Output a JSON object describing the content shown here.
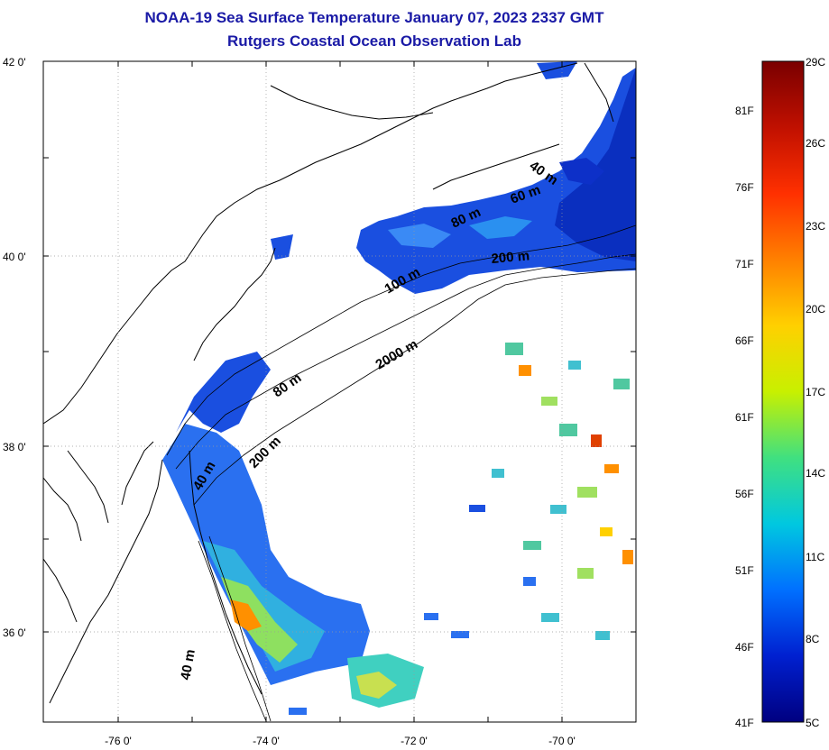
{
  "header": {
    "title": "NOAA-19 Sea Surface Temperature January 07, 2023 2337 GMT",
    "subtitle": "Rutgers Coastal Ocean Observation Lab"
  },
  "axes": {
    "lat_labels": [
      "42 0'",
      "40 0'",
      "38 0'",
      "36 0'"
    ],
    "lon_labels": [
      "-76 0'",
      "-74 0'",
      "-72 0'",
      "-70 0'"
    ]
  },
  "contours": {
    "labels": [
      "40 m",
      "60 m",
      "80 m",
      "200 m",
      "100 m",
      "2000 m",
      "80 m",
      "200 m",
      "40 m",
      "40 m"
    ]
  },
  "colorbar": {
    "fahrenheit": [
      "81F",
      "76F",
      "71F",
      "66F",
      "61F",
      "56F",
      "51F",
      "46F",
      "41F"
    ],
    "celsius": [
      "29C",
      "26C",
      "23C",
      "20C",
      "17C",
      "14C",
      "11C",
      "8C",
      "5C"
    ],
    "colors": [
      "#7a0000",
      "#c01000",
      "#ff3000",
      "#ff8000",
      "#ffd000",
      "#c8f000",
      "#40e080",
      "#00c8e0",
      "#0070ff",
      "#0020d0",
      "#000080"
    ]
  }
}
